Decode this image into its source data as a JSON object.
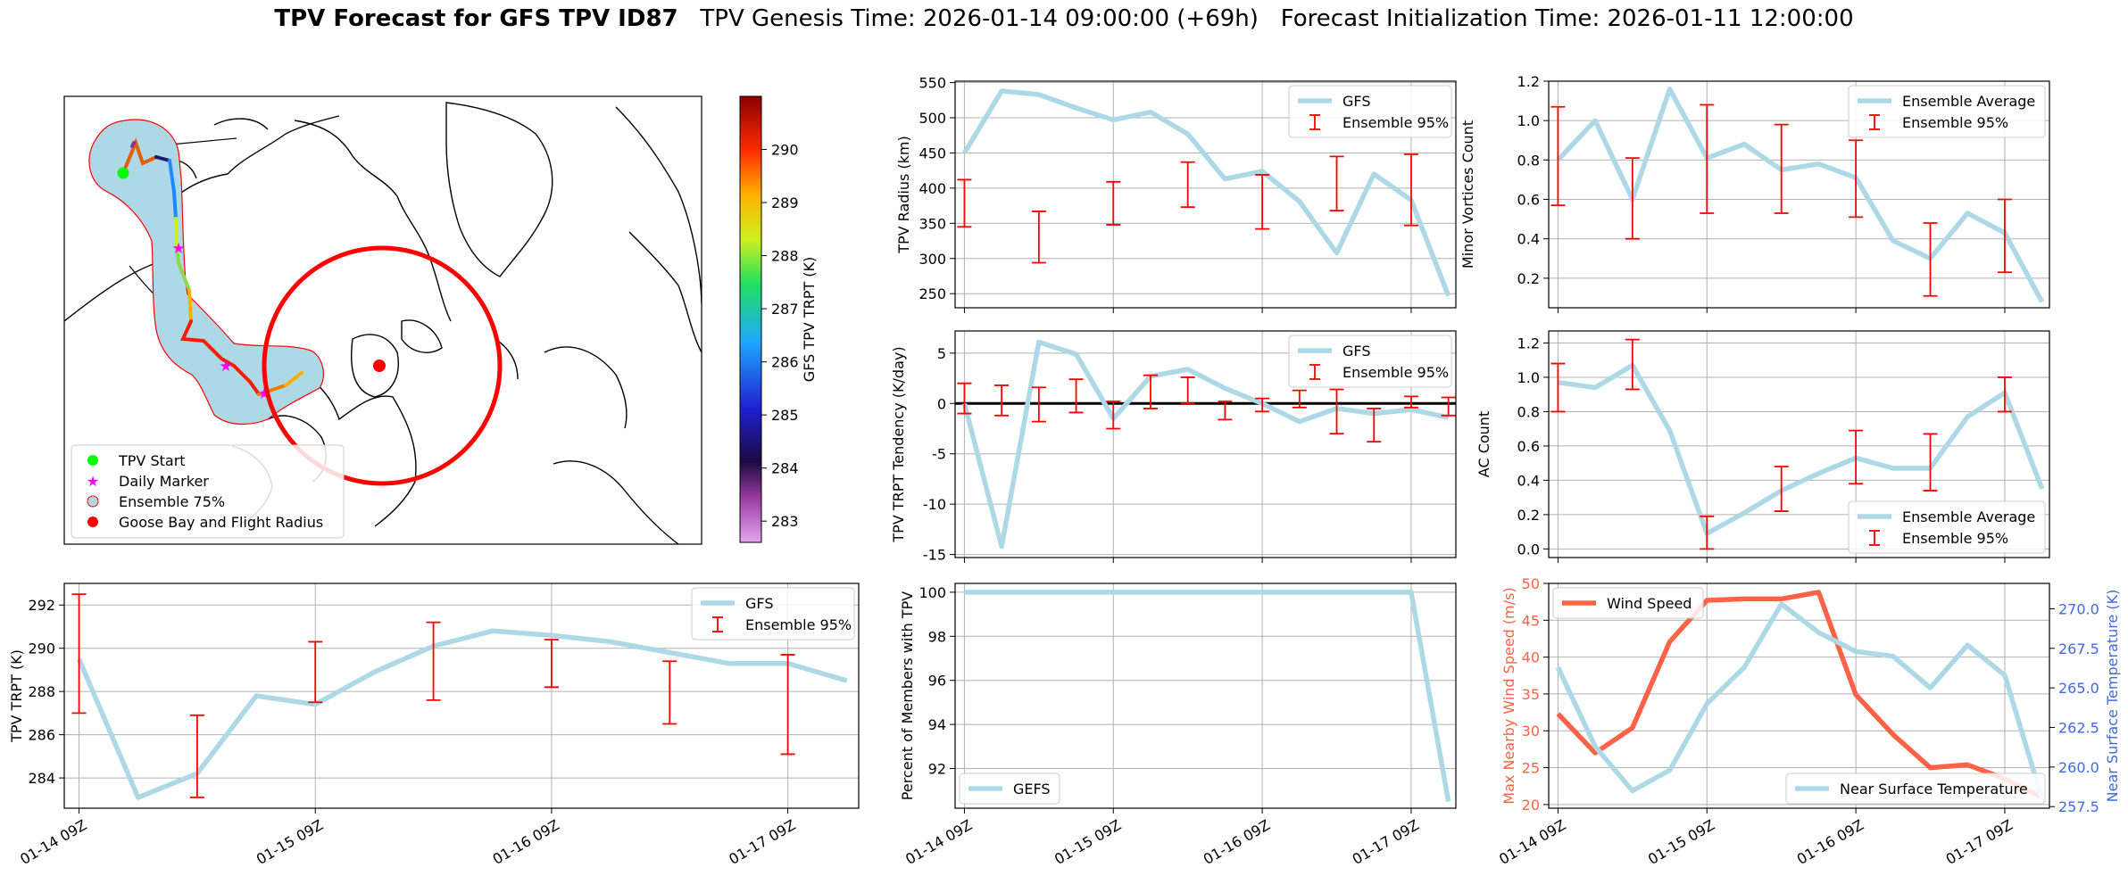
{
  "title": {
    "bold": "TPV Forecast for GFS TPV ID87",
    "genesis": "TPV Genesis Time: 2026-01-14 09:00:00 (+69h)",
    "init": "Forecast Initialization Time: 2026-01-11 12:00:00"
  },
  "colors": {
    "gfs_line": "#add8e6",
    "error_bar": "#ff0000",
    "wind": "#ff6347",
    "temp_axis": "#4169e1",
    "grid": "#b0b0b0"
  },
  "x_tick_labels": [
    "01-14 09Z",
    "01-15 09Z",
    "01-16 09Z",
    "01-17 09Z"
  ],
  "chart_data": [
    {
      "id": "map",
      "type": "scatter",
      "legend": [
        "TPV Start",
        "Daily Marker",
        "Ensemble 75%",
        "Goose Bay and Flight Radius"
      ],
      "colorbar": {
        "label": "GFS TPV TRPT (K)",
        "ticks": [
          283,
          284,
          285,
          286,
          287,
          288,
          289,
          290
        ],
        "range": [
          282.6,
          291.0
        ]
      }
    },
    {
      "id": "trpt",
      "type": "line",
      "ylabel": "TPV TRPT (K)",
      "ylim": [
        282.6,
        293.0
      ],
      "yticks": [
        284,
        286,
        288,
        290,
        292
      ],
      "x_hours": [
        0,
        6,
        12,
        18,
        24,
        30,
        36,
        42,
        48,
        54,
        60,
        66,
        72,
        78
      ],
      "series": [
        {
          "name": "GFS",
          "values": [
            289.5,
            283.1,
            284.2,
            287.8,
            287.4,
            288.9,
            290.1,
            290.8,
            290.6,
            290.3,
            289.8,
            289.3,
            289.3,
            288.5
          ]
        }
      ],
      "errorbars": {
        "name": "Ensemble 95%",
        "x_hours": [
          0,
          12,
          24,
          36,
          48,
          60,
          72
        ],
        "lo": [
          287.0,
          283.1,
          287.5,
          287.6,
          288.2,
          286.5,
          285.1
        ],
        "hi": [
          292.5,
          286.9,
          290.3,
          291.2,
          290.4,
          289.4,
          289.7
        ]
      },
      "legend_position": "top-right"
    },
    {
      "id": "radius",
      "type": "line",
      "ylabel": "TPV Radius (km)",
      "ylim": [
        230,
        552
      ],
      "yticks": [
        250,
        300,
        350,
        400,
        450,
        500,
        550
      ],
      "x_hours": [
        0,
        6,
        12,
        18,
        24,
        30,
        36,
        42,
        48,
        54,
        60,
        66,
        72,
        78
      ],
      "series": [
        {
          "name": "GFS",
          "values": [
            450,
            538,
            533,
            514,
            497,
            508,
            477,
            413,
            424,
            381,
            308,
            420,
            383,
            247
          ]
        }
      ],
      "errorbars": {
        "name": "Ensemble 95%",
        "x_hours": [
          0,
          12,
          24,
          36,
          48,
          60,
          72
        ],
        "lo": [
          345,
          294,
          348,
          373,
          342,
          368,
          347
        ],
        "hi": [
          412,
          367,
          409,
          437,
          419,
          445,
          448
        ]
      },
      "legend_position": "top-right"
    },
    {
      "id": "tendency",
      "type": "line",
      "ylabel": "TPV TRPT Tendency (K/day)",
      "ylim": [
        -15.3,
        7.2
      ],
      "yticks": [
        -15,
        -10,
        -5,
        0,
        5
      ],
      "zero_line": true,
      "x_hours": [
        0,
        6,
        12,
        18,
        24,
        30,
        36,
        42,
        48,
        54,
        60,
        66,
        72,
        78
      ],
      "series": [
        {
          "name": "GFS",
          "values": [
            0.0,
            -14.2,
            6.1,
            4.9,
            -1.5,
            2.7,
            3.4,
            1.5,
            0.0,
            -1.8,
            -0.5,
            -1.0,
            -0.6,
            -1.4
          ]
        }
      ],
      "errorbars": {
        "name": "Ensemble 95%",
        "x_hours": [
          0,
          6,
          12,
          18,
          24,
          30,
          36,
          42,
          48,
          54,
          60,
          66,
          72,
          78
        ],
        "lo": [
          -1.0,
          -1.2,
          -1.8,
          -0.9,
          -2.5,
          -0.5,
          0.0,
          -1.6,
          -0.8,
          -0.4,
          -3.0,
          -3.8,
          -0.4,
          -1.2
        ],
        "hi": [
          2.0,
          1.8,
          1.6,
          2.4,
          0.2,
          2.8,
          2.6,
          0.2,
          0.5,
          1.3,
          1.4,
          -0.5,
          0.7,
          0.6
        ]
      },
      "legend_position": "top-right"
    },
    {
      "id": "members",
      "type": "line",
      "ylabel": "Percent of Members with TPV",
      "ylim": [
        90.2,
        100.4
      ],
      "yticks": [
        92,
        94,
        96,
        98,
        100
      ],
      "x_hours": [
        0,
        6,
        12,
        18,
        24,
        30,
        36,
        42,
        48,
        54,
        60,
        66,
        72,
        78
      ],
      "series": [
        {
          "name": "GEFS",
          "values": [
            100,
            100,
            100,
            100,
            100,
            100,
            100,
            100,
            100,
            100,
            100,
            100,
            100,
            90.5
          ]
        }
      ],
      "legend_position": "bottom-left"
    },
    {
      "id": "minor",
      "type": "line",
      "ylabel": "Minor Vortices Count",
      "ylim": [
        0.05,
        1.2
      ],
      "yticks": [
        0.2,
        0.4,
        0.6,
        0.8,
        1.0,
        1.2
      ],
      "x_hours": [
        0,
        6,
        12,
        18,
        24,
        30,
        36,
        42,
        48,
        54,
        60,
        66,
        72,
        78
      ],
      "series": [
        {
          "name": "Ensemble Average",
          "values": [
            0.8,
            1.0,
            0.6,
            1.16,
            0.81,
            0.88,
            0.75,
            0.78,
            0.71,
            0.39,
            0.3,
            0.53,
            0.43,
            0.08
          ]
        }
      ],
      "errorbars": {
        "name": "Ensemble 95%",
        "x_hours": [
          0,
          12,
          24,
          36,
          48,
          60,
          72
        ],
        "lo": [
          0.57,
          0.4,
          0.53,
          0.53,
          0.51,
          0.11,
          0.23
        ],
        "hi": [
          1.07,
          0.81,
          1.08,
          0.98,
          0.9,
          0.48,
          0.6
        ]
      },
      "legend_position": "top-right"
    },
    {
      "id": "ac",
      "type": "line",
      "ylabel": "AC Count",
      "ylim": [
        -0.05,
        1.27
      ],
      "yticks": [
        0.0,
        0.2,
        0.4,
        0.6,
        0.8,
        1.0,
        1.2
      ],
      "x_hours": [
        0,
        6,
        12,
        18,
        24,
        30,
        36,
        42,
        48,
        54,
        60,
        66,
        72,
        78
      ],
      "series": [
        {
          "name": "Ensemble Average",
          "values": [
            0.97,
            0.94,
            1.07,
            0.69,
            0.09,
            0.21,
            0.34,
            0.44,
            0.53,
            0.47,
            0.47,
            0.77,
            0.91,
            0.35
          ]
        }
      ],
      "errorbars": {
        "name": "Ensemble 95%",
        "x_hours": [
          0,
          12,
          24,
          36,
          48,
          60,
          72
        ],
        "lo": [
          0.8,
          0.93,
          0.0,
          0.22,
          0.38,
          0.34,
          0.8
        ],
        "hi": [
          1.08,
          1.22,
          0.19,
          0.48,
          0.69,
          0.67,
          1.0
        ]
      },
      "legend_position": "bottom-right"
    },
    {
      "id": "wind_temp",
      "type": "line",
      "ylabel": "Max Nearby Wind Speed (m/s)",
      "ylim": [
        19.5,
        50.0
      ],
      "yticks": [
        20,
        25,
        30,
        35,
        40,
        45,
        50
      ],
      "y2label": "Near Surface Temperature (K)",
      "y2lim": [
        257.4,
        271.6
      ],
      "y2ticks": [
        257.5,
        260.0,
        262.5,
        265.0,
        267.5,
        270.0
      ],
      "x_hours": [
        0,
        6,
        12,
        18,
        24,
        30,
        36,
        42,
        48,
        54,
        60,
        66,
        72,
        78
      ],
      "series": [
        {
          "name": "Wind Speed",
          "axis": "left",
          "values": [
            32.3,
            27.0,
            30.4,
            42.1,
            47.7,
            47.9,
            47.9,
            48.8,
            34.9,
            29.5,
            25.0,
            25.4,
            23.5,
            21.0
          ]
        },
        {
          "name": "Near Surface Temperature",
          "axis": "right",
          "values": [
            266.3,
            261.3,
            258.5,
            259.8,
            264.0,
            266.3,
            270.3,
            268.5,
            267.3,
            267.0,
            265.0,
            267.7,
            265.8,
            258.0
          ]
        }
      ],
      "legend_position": "top-left / bottom-right"
    }
  ]
}
